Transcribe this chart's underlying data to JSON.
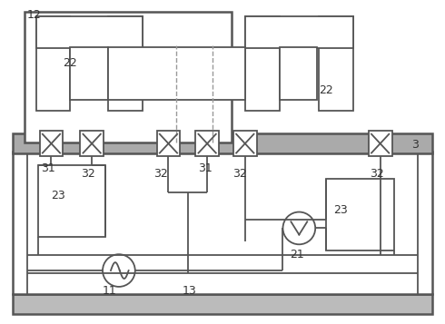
{
  "line_color": "#555555",
  "dark_line": "#333333",
  "fig_w": 4.9,
  "fig_h": 3.57,
  "dpi": 100
}
